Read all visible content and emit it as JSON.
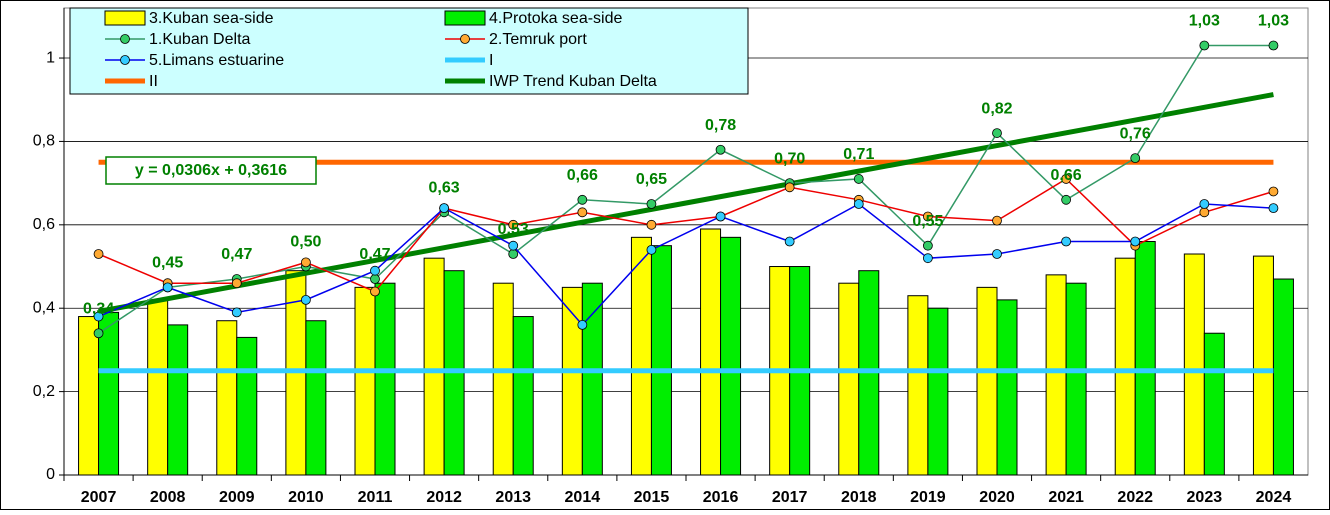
{
  "chart_data": {
    "type": "bar-line",
    "categories": [
      "2007",
      "2008",
      "2009",
      "2010",
      "2011",
      "2012",
      "2013",
      "2014",
      "2015",
      "2016",
      "2017",
      "2018",
      "2019",
      "2020",
      "2021",
      "2022",
      "2023",
      "2024"
    ],
    "ylim": [
      0,
      1.12
    ],
    "yticks": [
      0,
      {
        "value": 0.2,
        "label": "0,2"
      },
      {
        "value": 0.4,
        "label": "0,4"
      },
      {
        "value": 0.6,
        "label": "0,6"
      },
      {
        "value": 0.8,
        "label": "0,8"
      },
      1
    ],
    "grid": true,
    "annotation": "y = 0,0306x + 0,3616",
    "series": [
      {
        "name": "3.Kuban sea-side",
        "type": "bar",
        "color": "#ffff00",
        "values": [
          0.38,
          0.42,
          0.37,
          0.49,
          0.45,
          0.52,
          0.46,
          0.45,
          0.57,
          0.59,
          0.5,
          0.46,
          0.43,
          0.45,
          0.48,
          0.52,
          0.53,
          0.525
        ]
      },
      {
        "name": "4.Protoka sea-side",
        "type": "bar",
        "color": "#00ee00",
        "values": [
          0.39,
          0.36,
          0.33,
          0.37,
          0.46,
          0.49,
          0.38,
          0.46,
          0.55,
          0.57,
          0.5,
          0.49,
          0.4,
          0.42,
          0.46,
          0.56,
          0.34,
          0.47
        ]
      },
      {
        "name": "1.Kuban Delta",
        "type": "line",
        "color": "#339966",
        "marker_color": "#33cc66",
        "label_color": "#008000",
        "values": [
          0.34,
          0.45,
          0.47,
          0.5,
          0.47,
          0.63,
          0.53,
          0.66,
          0.65,
          0.78,
          0.7,
          0.71,
          0.55,
          0.82,
          0.66,
          0.76,
          1.03,
          1.03
        ],
        "value_labels": [
          "0,34",
          "0,45",
          "0,47",
          "0,50",
          "0,47",
          "0,63",
          "0,53",
          "0,66",
          "0,65",
          "0,78",
          "0,70",
          "0,71",
          "0,55",
          "0,82",
          "0,66",
          "0,76",
          "1,03",
          "1,03"
        ]
      },
      {
        "name": "2.Temruk port",
        "type": "line",
        "color": "#ee0000",
        "marker_color": "#ffaa33",
        "values": [
          0.53,
          0.46,
          0.46,
          0.51,
          0.44,
          0.64,
          0.6,
          0.63,
          0.6,
          0.62,
          0.69,
          0.66,
          0.62,
          0.61,
          0.71,
          0.55,
          0.63,
          0.68
        ]
      },
      {
        "name": "5.Limans estuarine",
        "type": "line",
        "color": "#0000ee",
        "marker_color": "#33ccff",
        "values": [
          0.38,
          0.45,
          0.39,
          0.42,
          0.49,
          0.64,
          0.55,
          0.36,
          0.54,
          0.62,
          0.56,
          0.65,
          0.52,
          0.53,
          0.56,
          0.56,
          0.65,
          0.64
        ]
      },
      {
        "name": "I",
        "type": "line",
        "color": "#33ccff",
        "width": 5,
        "values": [
          0.25,
          0.25,
          0.25,
          0.25,
          0.25,
          0.25,
          0.25,
          0.25,
          0.25,
          0.25,
          0.25,
          0.25,
          0.25,
          0.25,
          0.25,
          0.25,
          0.25,
          0.25
        ]
      },
      {
        "name": "II",
        "type": "line",
        "color": "#ff6600",
        "width": 5,
        "values": [
          0.75,
          0.75,
          0.75,
          0.75,
          0.75,
          0.75,
          0.75,
          0.75,
          0.75,
          0.75,
          0.75,
          0.75,
          0.75,
          0.75,
          0.75,
          0.75,
          0.75,
          0.75
        ]
      },
      {
        "name": "IWP Trend Kuban Delta",
        "type": "line",
        "color": "#008000",
        "width": 5,
        "values": [
          0.3922,
          0.4228,
          0.4534,
          0.484,
          0.5146,
          0.5452,
          0.5758,
          0.6064,
          0.637,
          0.6676,
          0.6982,
          0.7288,
          0.7594,
          0.79,
          0.8206,
          0.8512,
          0.8818,
          0.9124
        ]
      }
    ]
  }
}
